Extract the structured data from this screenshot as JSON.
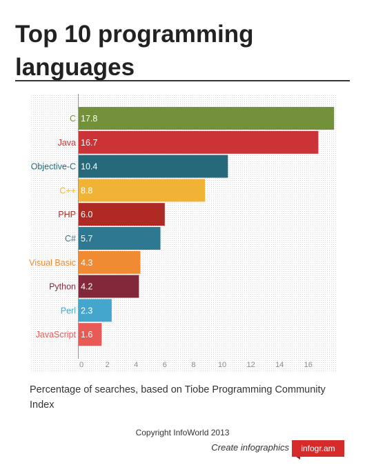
{
  "header": {
    "title": "Top 10 programming languages"
  },
  "chart_data": {
    "type": "bar",
    "orientation": "horizontal",
    "categories": [
      "C",
      "Java",
      "Objective-C",
      "C++",
      "PHP",
      "C#",
      "Visual Basic",
      "Python",
      "Perl",
      "JavaScript"
    ],
    "values": [
      17.8,
      16.7,
      10.4,
      8.8,
      6.0,
      5.7,
      4.3,
      4.2,
      2.3,
      1.6
    ],
    "value_labels": [
      "17.8",
      "16.7",
      "10.4",
      "8.8",
      "6.0",
      "5.7",
      "4.3",
      "4.2",
      "2.3",
      "1.6"
    ],
    "colors": [
      "#72913a",
      "#cc3336",
      "#25697a",
      "#f0b336",
      "#b02a25",
      "#2e7891",
      "#f08a33",
      "#82283a",
      "#44a6cc",
      "#e85a55"
    ],
    "x_ticks": [
      "0",
      "2",
      "4",
      "6",
      "8",
      "10",
      "12",
      "14",
      "16"
    ],
    "xlim": [
      0,
      18
    ],
    "grid": "dotted background",
    "legend": "none"
  },
  "footer": {
    "caption": "Percentage of searches, based on Tiobe Programming Community Index",
    "copyright": "Copyright InfoWorld 2013",
    "create_link": "Create infographics",
    "brand": "infogr.am"
  }
}
